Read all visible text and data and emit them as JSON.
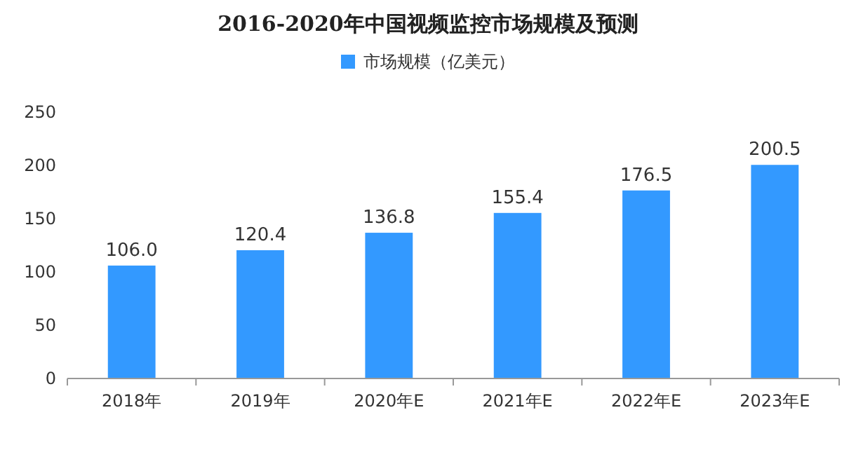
{
  "chart_data": {
    "type": "bar",
    "title": "2016-2020年中国视频监控市场规模及预测",
    "categories": [
      "2018年",
      "2019年",
      "2020年E",
      "2021年E",
      "2022年E",
      "2023年E"
    ],
    "series": [
      {
        "name": "市场规模（亿美元）",
        "color": "#3399ff",
        "values": [
          106.0,
          120.4,
          136.8,
          155.4,
          176.5,
          200.5
        ]
      }
    ],
    "value_labels": [
      "106.0",
      "120.4",
      "136.8",
      "155.4",
      "176.5",
      "200.5"
    ],
    "ylim": [
      0,
      250
    ],
    "yticks": [
      0,
      50,
      100,
      150,
      200,
      250
    ],
    "legend": "top"
  }
}
